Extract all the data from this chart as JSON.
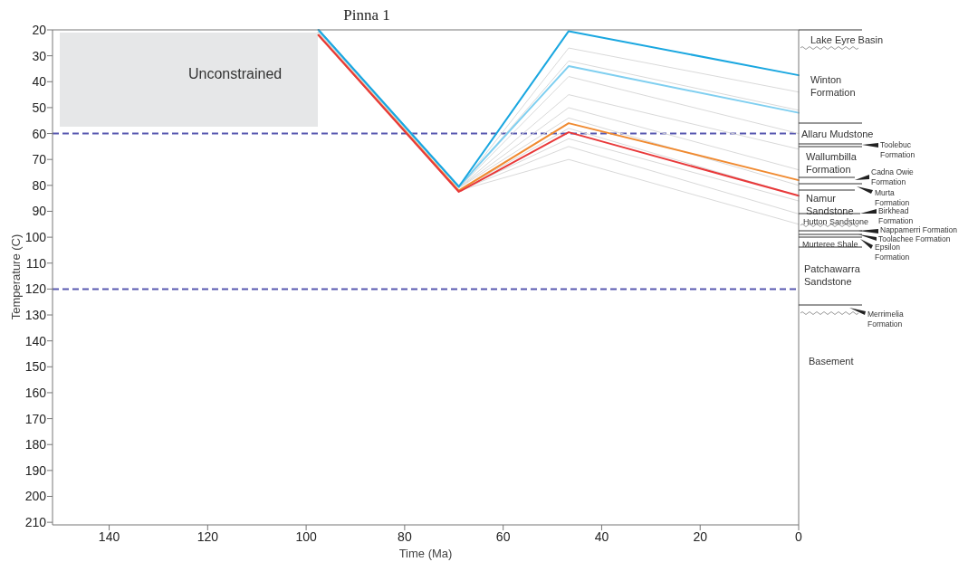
{
  "chart_data": {
    "type": "line",
    "title": "Pinna 1",
    "xlabel": "Time (Ma)",
    "ylabel": "Temperature (C)",
    "xlim": [
      151.5,
      0
    ],
    "xticks": [
      140,
      120,
      100,
      80,
      60,
      40,
      20,
      0
    ],
    "ylim": [
      211,
      20
    ],
    "yticks": [
      20,
      30,
      40,
      50,
      60,
      70,
      80,
      90,
      100,
      110,
      120,
      130,
      140,
      150,
      160,
      170,
      180,
      190,
      200,
      210
    ],
    "grid": false,
    "marker": "none",
    "line_style": "solid",
    "series": [
      {
        "color": "#d9d9d9",
        "x": [
          97.5,
          69,
          46.7,
          0
        ],
        "values": [
          21,
          81,
          27,
          44
        ]
      },
      {
        "color": "#d9d9d9",
        "x": [
          97.5,
          69,
          46.7,
          0
        ],
        "values": [
          21,
          81,
          32,
          51
        ]
      },
      {
        "color": "#d9d9d9",
        "x": [
          97.5,
          69,
          46.7,
          0
        ],
        "values": [
          21,
          81,
          38,
          60
        ]
      },
      {
        "color": "#d9d9d9",
        "x": [
          97.5,
          69,
          46.7,
          0
        ],
        "values": [
          21,
          81,
          45,
          66
        ]
      },
      {
        "color": "#d9d9d9",
        "x": [
          97.5,
          69,
          46.7,
          0
        ],
        "values": [
          21,
          81,
          50,
          74
        ]
      },
      {
        "color": "#d9d9d9",
        "x": [
          97.5,
          69,
          46.7,
          0
        ],
        "values": [
          21,
          81,
          54,
          80
        ]
      },
      {
        "color": "#d9d9d9",
        "x": [
          97.5,
          69,
          46.7,
          0
        ],
        "values": [
          21,
          82,
          58,
          84
        ]
      },
      {
        "color": "#d9d9d9",
        "x": [
          97.5,
          69,
          46.7,
          0
        ],
        "values": [
          21,
          82,
          62,
          86
        ]
      },
      {
        "color": "#d9d9d9",
        "x": [
          97.5,
          69,
          46.7,
          0
        ],
        "values": [
          21,
          82,
          65,
          91
        ]
      },
      {
        "color": "#d9d9d9",
        "x": [
          97.5,
          69,
          46.7,
          0
        ],
        "values": [
          21,
          82,
          70,
          95
        ]
      },
      {
        "color": "#7fcff0",
        "x": [
          97.5,
          69,
          46.7,
          0
        ],
        "values": [
          20,
          80.5,
          34,
          52
        ]
      },
      {
        "color": "#f08a30",
        "x": [
          97.5,
          69,
          46.7,
          0
        ],
        "values": [
          22,
          82,
          56,
          78
        ]
      },
      {
        "color": "#e8393a",
        "x": [
          97.5,
          69,
          46.7,
          0
        ],
        "values": [
          22,
          82.5,
          59.5,
          84
        ]
      },
      {
        "color": "#1aa7e0",
        "x": [
          97.5,
          69,
          46.7,
          0
        ],
        "values": [
          20,
          80.5,
          20.5,
          37.5
        ]
      }
    ],
    "ref_lines": [
      {
        "axis": "y",
        "value": 60,
        "color": "#5858b0",
        "line_style": "dashed"
      },
      {
        "axis": "y",
        "value": 120,
        "color": "#5858b0",
        "line_style": "dashed"
      }
    ],
    "annotations": [
      "Unconstrained",
      "Lake Eyre Basin",
      "Winton Formation",
      "Allaru Mudstone",
      "Toolebuc Formation",
      "Wallumbilla Formation",
      "Cadna Owie Formation",
      "Namur Sandstone",
      "Murta Formation",
      "Birkhead Formation",
      "Hutton Sandstone",
      "Nappamerri Formation",
      "Toolachee Formation",
      "Murteree Shale",
      "Epsilon Formation",
      "Patchawarra Sandstone",
      "Merrimelia Formation",
      "Basement"
    ]
  }
}
